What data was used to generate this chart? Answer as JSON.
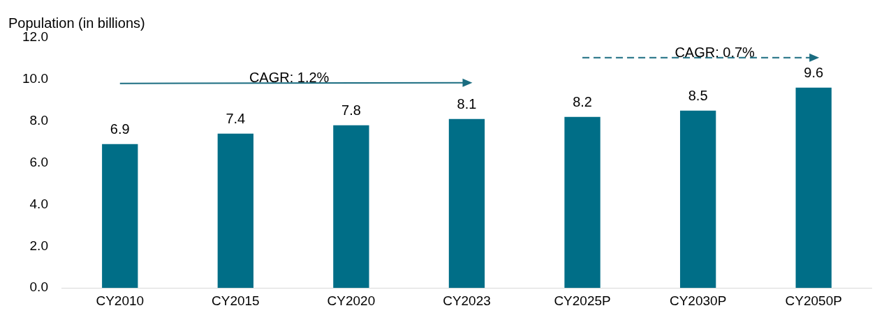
{
  "chart_data": {
    "type": "bar",
    "ylabel": "Population (in billions)",
    "categories": [
      "CY2010",
      "CY2015",
      "CY2020",
      "CY2023",
      "CY2025P",
      "CY2030P",
      "CY2050P"
    ],
    "values": [
      6.9,
      7.4,
      7.8,
      8.1,
      8.2,
      8.5,
      9.6
    ],
    "color": "#006e87",
    "ylim": [
      0,
      12
    ],
    "yticks": [
      {
        "value": 0,
        "label": "0.0"
      },
      {
        "value": 2,
        "label": "2.0"
      },
      {
        "value": 4,
        "label": "4.0"
      },
      {
        "value": 6,
        "label": "6.0"
      },
      {
        "value": 8,
        "label": "8.0"
      },
      {
        "value": 10,
        "label": "10.0"
      },
      {
        "value": 12,
        "label": "12.0"
      }
    ],
    "grid": false,
    "legend": false,
    "data_labels": true,
    "annotations": [
      "CAGR: 1.2%",
      "CAGR: 0.7%"
    ]
  }
}
